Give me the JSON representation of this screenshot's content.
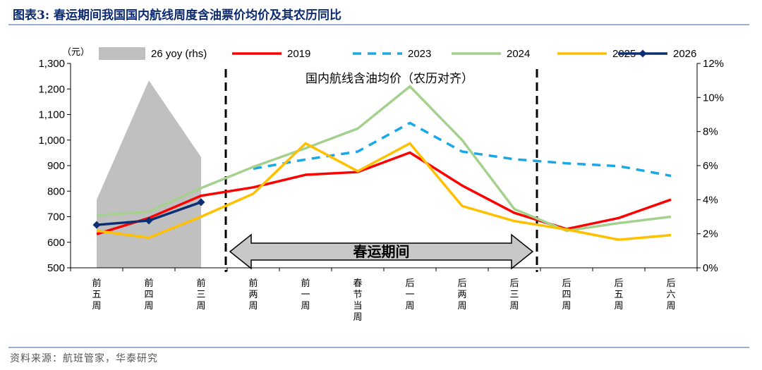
{
  "header": {
    "title": "图表3:  春运期间我国国内航线周度含油票价均价及其农历同比"
  },
  "footer": {
    "source": "资料来源：航班管家，华泰研究"
  },
  "colors": {
    "title": "#0b2a6f",
    "rule": "#9aaecd"
  },
  "chart_data": {
    "type": "line",
    "title": "国内航线含油均价（农历对齐）",
    "ylabel": "（元）",
    "y2label": "",
    "ylim": [
      500,
      1300
    ],
    "y2lim": [
      0,
      12
    ],
    "yticks": [
      "500",
      "600",
      "700",
      "800",
      "900",
      "1,000",
      "1,100",
      "1,200",
      "1,300"
    ],
    "y2ticks": [
      "0%",
      "2%",
      "4%",
      "6%",
      "8%",
      "10%",
      "12%"
    ],
    "categories": [
      [
        "前",
        "五",
        "周"
      ],
      [
        "前",
        "四",
        "周"
      ],
      [
        "前",
        "三",
        "周"
      ],
      [
        "前",
        "两",
        "周"
      ],
      [
        "前",
        "一",
        "周"
      ],
      [
        "春",
        "节",
        "当",
        "周"
      ],
      [
        "后",
        "一",
        "周"
      ],
      [
        "后",
        "两",
        "周"
      ],
      [
        "后",
        "三",
        "周"
      ],
      [
        "后",
        "四",
        "周"
      ],
      [
        "后",
        "五",
        "周"
      ],
      [
        "后",
        "六",
        "周"
      ]
    ],
    "area_series": {
      "name": "26 yoy (rhs)",
      "color": "#c0c0c0",
      "values": [
        4.0,
        11.0,
        6.5
      ]
    },
    "series": [
      {
        "name": "2019",
        "color": "#ff0000",
        "dash": "solid",
        "values": [
          632,
          695,
          782,
          815,
          864,
          875,
          951,
          822,
          715,
          652,
          695,
          767
        ]
      },
      {
        "name": "2023",
        "color": "#1aa8e6",
        "dash": "dashed",
        "values": [
          null,
          null,
          null,
          888,
          924,
          955,
          1067,
          955,
          925,
          909,
          898,
          860
        ]
      },
      {
        "name": "2024",
        "color": "#a4d18e",
        "dash": "solid",
        "values": [
          705,
          720,
          812,
          895,
          968,
          1045,
          1210,
          1000,
          730,
          645,
          675,
          700
        ]
      },
      {
        "name": "2025",
        "color": "#ffc000",
        "dash": "solid",
        "values": [
          645,
          618,
          700,
          790,
          987,
          878,
          987,
          742,
          683,
          650,
          610,
          628
        ]
      },
      {
        "name": "2026",
        "color": "#0b2f72",
        "dash": "solid",
        "marker": "diamond",
        "values": [
          668,
          685,
          757,
          null,
          null,
          null,
          null,
          null,
          null,
          null,
          null,
          null
        ]
      }
    ],
    "annotations": {
      "period_label": "春运期间",
      "period_start": 3,
      "period_end": 8
    },
    "grid": false,
    "legend": "top"
  }
}
